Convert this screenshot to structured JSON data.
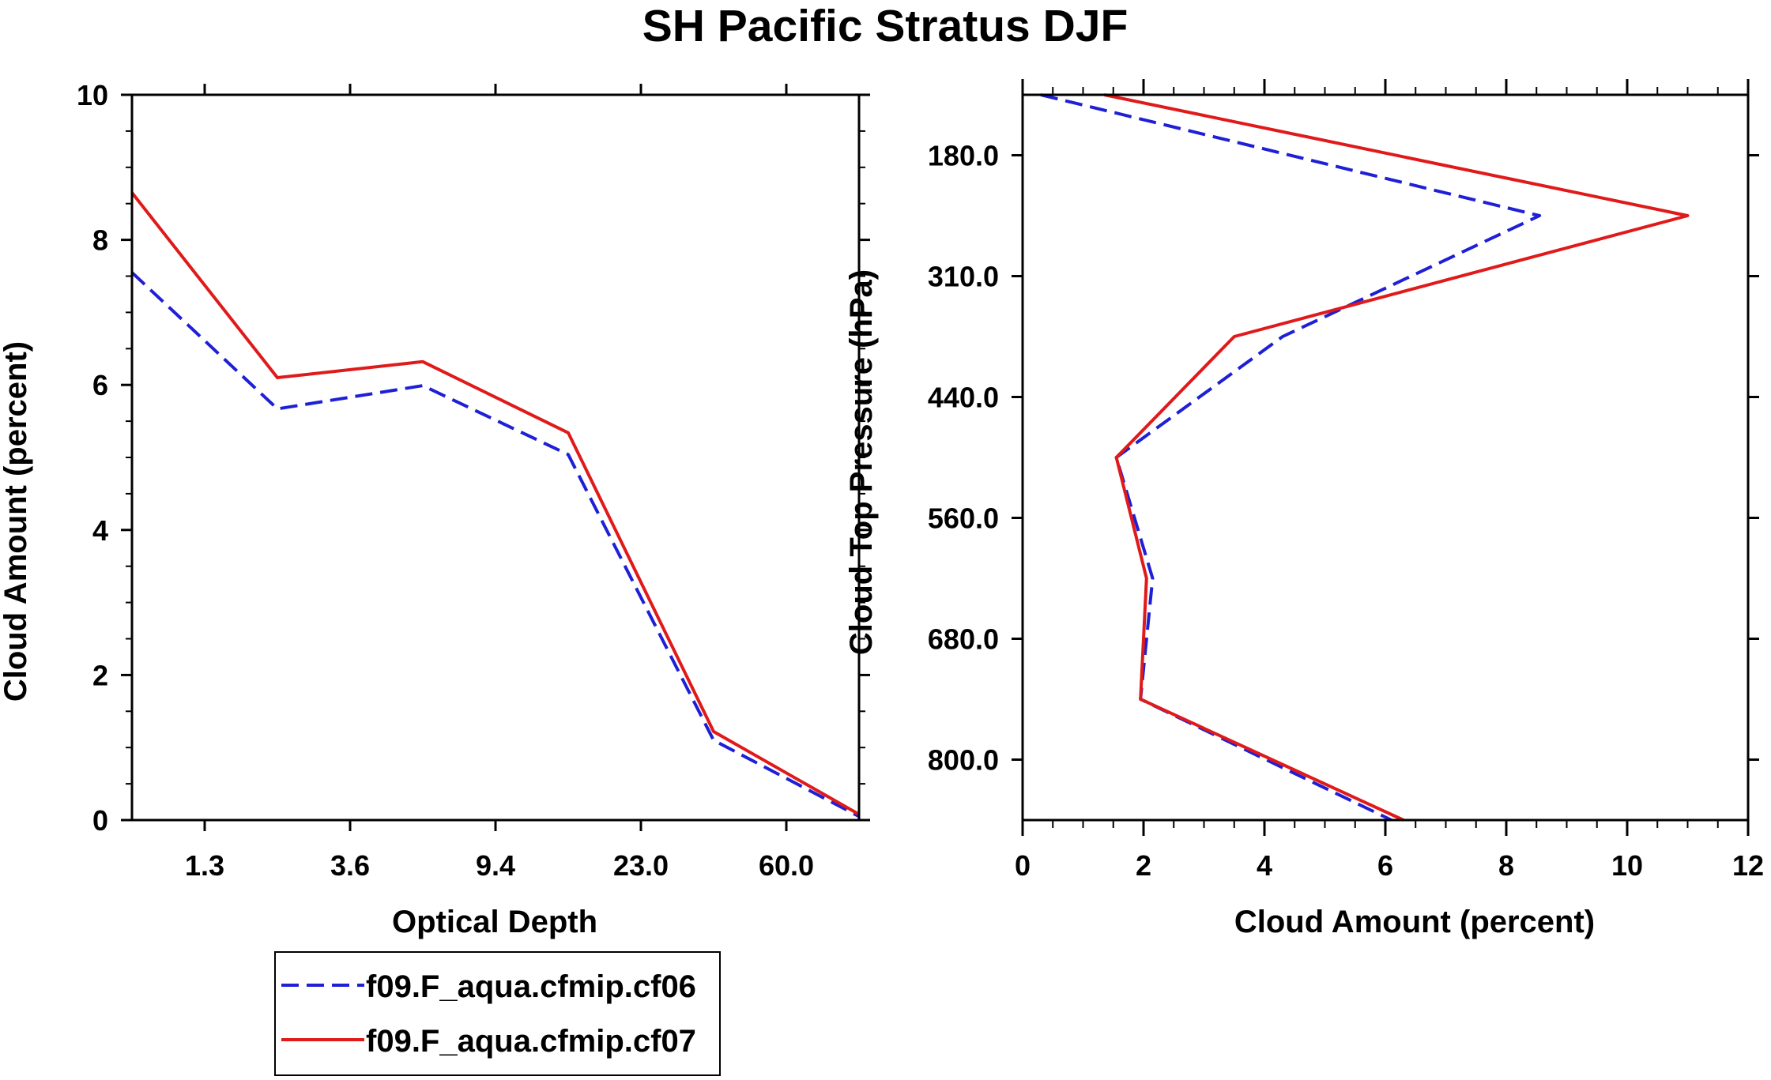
{
  "title": "SH Pacific Stratus DJF",
  "series_names": [
    "f09.F_aqua.cfmip.cf06",
    "f09.F_aqua.cfmip.cf07"
  ],
  "colors": {
    "cf06": "#1f1fd6",
    "cf07": "#e01a1a",
    "axis": "#000000"
  },
  "legend": {
    "items": [
      {
        "label": "f09.F_aqua.cfmip.cf06",
        "style": "dashed",
        "color": "#1f1fd6"
      },
      {
        "label": "f09.F_aqua.cfmip.cf07",
        "style": "solid",
        "color": "#e01a1a"
      }
    ]
  },
  "chart_data": [
    {
      "type": "line",
      "xlabel": "Optical Depth",
      "ylabel": "Cloud Amount (percent)",
      "x": [
        0,
        1,
        2,
        3,
        4,
        5
      ],
      "xlim": [
        0,
        5
      ],
      "xticks": [
        0.5,
        1.5,
        2.5,
        3.5,
        4.5
      ],
      "xtick_labels": [
        "1.3",
        "3.6",
        "9.4",
        "23.0",
        "60.0"
      ],
      "ylim": [
        0,
        10
      ],
      "yticks": [
        0,
        2,
        4,
        6,
        8,
        10
      ],
      "ytick_labels": [
        "0",
        "2",
        "4",
        "6",
        "8",
        "10"
      ],
      "series": [
        {
          "name": "f09.F_aqua.cfmip.cf06",
          "style": "dashed",
          "values": [
            7.55,
            5.67,
            5.99,
            5.04,
            1.1,
            0.05
          ]
        },
        {
          "name": "f09.F_aqua.cfmip.cf07",
          "style": "solid",
          "values": [
            8.65,
            6.1,
            6.32,
            5.34,
            1.22,
            0.08
          ]
        }
      ]
    },
    {
      "type": "line",
      "xlabel": "Cloud Amount (percent)",
      "ylabel": "Cloud Top Pressure (hPa)",
      "xlim": [
        0,
        12
      ],
      "xticks": [
        0,
        2,
        4,
        6,
        8,
        10,
        12
      ],
      "xtick_labels": [
        "0",
        "2",
        "4",
        "6",
        "8",
        "10",
        "12"
      ],
      "y": [
        0,
        1,
        2,
        3,
        4,
        5,
        6
      ],
      "ylim": [
        0,
        6
      ],
      "yticks": [
        0.5,
        1.5,
        2.5,
        3.5,
        4.5,
        5.5
      ],
      "ytick_labels": [
        "180.0",
        "310.0",
        "440.0",
        "560.0",
        "680.0",
        "800.0"
      ],
      "series": [
        {
          "name": "f09.F_aqua.cfmip.cf06",
          "style": "dashed",
          "values": [
            0.3,
            8.55,
            4.3,
            1.55,
            2.15,
            1.95,
            6.1
          ]
        },
        {
          "name": "f09.F_aqua.cfmip.cf07",
          "style": "solid",
          "values": [
            1.35,
            11.0,
            3.5,
            1.55,
            2.05,
            1.95,
            6.3
          ]
        }
      ]
    }
  ]
}
